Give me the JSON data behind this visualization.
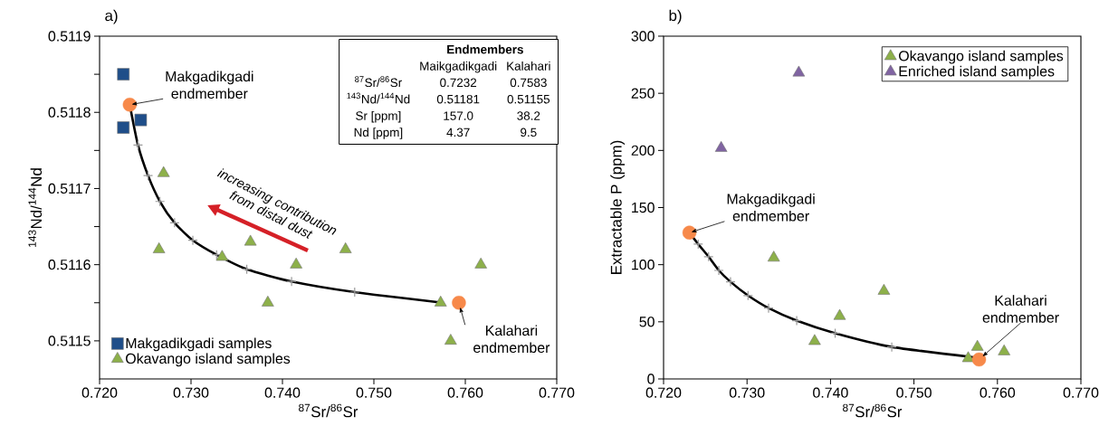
{
  "chart_data": [
    {
      "type": "scatter",
      "title": "a)",
      "xlabel": "$^{87}$Sr/$^{86}$Sr",
      "ylabel": "$^{143}$Nd/$^{144}$Nd",
      "xlim": [
        0.72,
        0.77
      ],
      "ylim": [
        0.51145,
        0.5119
      ],
      "xticks": [
        {
          "value": 0.72,
          "label": "0.720"
        },
        {
          "value": 0.73,
          "label": "0.730"
        },
        {
          "value": 0.74,
          "label": "0.740"
        },
        {
          "value": 0.75,
          "label": "0.750"
        },
        {
          "value": 0.76,
          "label": "0.760"
        },
        {
          "value": 0.77,
          "label": "0.770"
        }
      ],
      "yticks": [
        0.5115,
        {
          "value": 0.51155,
          "label": null
        },
        0.5116,
        {
          "value": 0.51165,
          "label": null
        },
        0.5117,
        {
          "value": 0.51175,
          "label": null
        },
        0.5118,
        {
          "value": 0.51185,
          "label": null
        },
        0.5119
      ],
      "legend": "bottom left",
      "series": [
        {
          "type": "line",
          "color": "#000000",
          "marker": "none",
          "x": [
            0.7233,
            0.7242,
            0.7253,
            0.7266,
            0.7282,
            0.7302,
            0.7328,
            0.7361,
            0.741,
            0.7479,
            0.7575
          ],
          "values": [
            0.51181,
            0.511757,
            0.511717,
            0.511683,
            0.511655,
            0.511632,
            0.511613,
            0.511594,
            0.511578,
            0.511564,
            0.51155
          ]
        },
        {
          "color": "#999999",
          "marker": "cross",
          "x": [
            0.7242,
            0.7253,
            0.7266,
            0.7282,
            0.7302,
            0.7328,
            0.7361,
            0.741,
            0.7479
          ],
          "values": [
            0.511757,
            0.511717,
            0.511683,
            0.511655,
            0.511632,
            0.511613,
            0.511594,
            0.511578,
            0.511564
          ]
        },
        {
          "name": "Makgadikgadi samples",
          "color": "#1f4e89",
          "marker": "square",
          "x": [
            0.7226,
            0.7226,
            0.7245
          ],
          "values": [
            0.51185,
            0.51178,
            0.51179
          ]
        },
        {
          "name": "Okavango island samples",
          "color": "#8db04a",
          "marker": "triangle",
          "x": [
            0.727,
            0.7265,
            0.7334,
            0.7365,
            0.7384,
            0.7415,
            0.7469,
            0.7573,
            0.7617,
            0.7584
          ],
          "values": [
            0.51172,
            0.51162,
            0.51161,
            0.51163,
            0.51155,
            0.5116,
            0.51162,
            0.51155,
            0.5116,
            0.5115
          ]
        },
        {
          "color": "#f7894a",
          "marker": "circle",
          "x": [
            0.7233,
            0.7593
          ],
          "values": [
            0.51181,
            0.51155
          ]
        }
      ],
      "annotations": [
        {
          "text": "Makgadikgadi endmember",
          "x": 0.7233,
          "y": 0.51181
        },
        {
          "text": "Kalahari endmember",
          "x": 0.7593,
          "y": 0.51155
        },
        "increasing contribution from distal dust",
        "Endmembers",
        "Maikgadikgadi",
        "Kalahari",
        "$^{87}$Sr/$^{86}$Sr",
        "0.7232",
        "0.7583",
        "$^{143}$Nd/$^{144}$Nd",
        "0.51181",
        "0.51155",
        "Sr [ppm]",
        "157.0",
        "38.2",
        "Nd [ppm]",
        "4.37",
        "9.5"
      ]
    },
    {
      "type": "scatter",
      "title": "b)",
      "xlabel": "$^{87}$Sr/$^{86}$Sr",
      "ylabel": "Extractable P (ppm)",
      "xlim": [
        0.72,
        0.77
      ],
      "ylim": [
        0,
        300
      ],
      "xticks": [
        {
          "value": 0.72,
          "label": "0.720"
        },
        {
          "value": 0.73,
          "label": "0.730"
        },
        {
          "value": 0.74,
          "label": "0.740"
        },
        {
          "value": 0.75,
          "label": "0.750"
        },
        {
          "value": 0.76,
          "label": "0.760"
        },
        {
          "value": 0.77,
          "label": "0.770"
        }
      ],
      "yticks": [
        0,
        50,
        100,
        150,
        200,
        250,
        300
      ],
      "legend": "top right",
      "series": [
        {
          "type": "line",
          "color": "#000000",
          "marker": "none",
          "x": [
            0.7231,
            0.72415,
            0.72539,
            0.72662,
            0.72802,
            0.73012,
            0.73258,
            0.73595,
            0.74056,
            0.74734,
            0.7571
          ],
          "values": [
            128,
            118,
            107,
            95,
            85,
            73,
            62,
            51,
            40,
            28,
            19
          ]
        },
        {
          "color": "#999999",
          "marker": "cross",
          "x": [
            0.72415,
            0.72539,
            0.72662,
            0.72802,
            0.73012,
            0.73258,
            0.73595,
            0.74056,
            0.74734
          ],
          "values": [
            118,
            107,
            95,
            85,
            73,
            62,
            51,
            40,
            28
          ]
        },
        {
          "name": "Okavango island samples",
          "color": "#8db04a",
          "marker": "triangle",
          "x": [
            0.7332,
            0.7381,
            0.7411,
            0.7464,
            0.7565,
            0.7576,
            0.7608
          ],
          "values": [
            106,
            33,
            55,
            77,
            18,
            28,
            24
          ]
        },
        {
          "name": "Enriched island samples",
          "color": "#8064a2",
          "marker": "triangle",
          "x": [
            0.7269,
            0.7362
          ],
          "values": [
            202,
            268
          ]
        },
        {
          "color": "#f7894a",
          "marker": "circle",
          "x": [
            0.7231,
            0.7578
          ],
          "values": [
            128,
            17
          ]
        }
      ],
      "annotations": [
        {
          "text": "Makgadikgadi endmember",
          "x": 0.7231,
          "y": 128
        },
        {
          "text": "Kalahari endmember",
          "x": 0.7578,
          "y": 17
        }
      ]
    }
  ]
}
